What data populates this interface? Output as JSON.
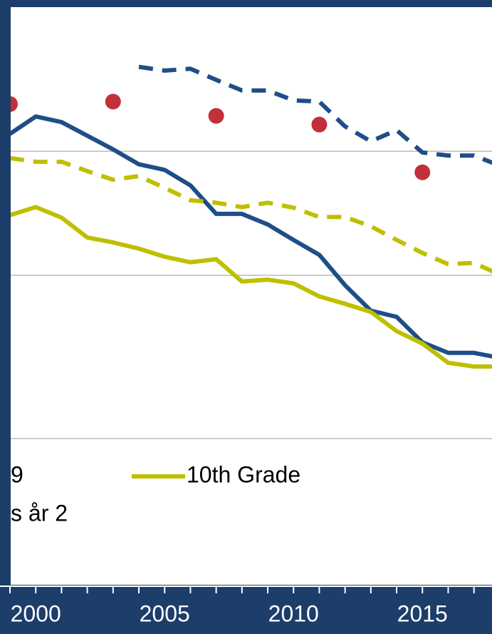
{
  "chart_data": {
    "type": "line",
    "x": [
      1999,
      2000,
      2001,
      2002,
      2003,
      2004,
      2005,
      2006,
      2007,
      2008,
      2009,
      2010,
      2011,
      2012,
      2013,
      2014,
      2015,
      2016,
      2017,
      2018
    ],
    "series": [
      {
        "name": "9",
        "color": "#1f4e87",
        "dash": false,
        "values": [
          62.8,
          65.6,
          64.7,
          62.5,
          60.3,
          57.9,
          57.0,
          54.5,
          49.9,
          49.9,
          48.2,
          45.7,
          43.3,
          38.4,
          34.3,
          33.3,
          29.2,
          27.5,
          27.5,
          26.7
        ]
      },
      {
        "name": "10th Grade",
        "color": "#bfbf00",
        "dash": false,
        "values": [
          49.7,
          51.0,
          49.3,
          46.1,
          45.3,
          44.3,
          43.0,
          42.1,
          42.6,
          39.0,
          39.3,
          38.7,
          36.6,
          35.4,
          34.1,
          31.0,
          29.0,
          25.9,
          25.3,
          25.3
        ]
      },
      {
        "name": "s år 2",
        "color": "#bfbf00",
        "dash": true,
        "values": [
          58.9,
          58.3,
          58.3,
          56.8,
          55.4,
          56.0,
          54.1,
          52.1,
          51.7,
          51.0,
          51.7,
          50.9,
          49.4,
          49.4,
          47.9,
          45.7,
          43.6,
          41.8,
          42.0,
          40.1
        ]
      },
      {
        "color": "#1f4e87",
        "dash": true,
        "values": [
          null,
          null,
          null,
          null,
          null,
          73.6,
          73.0,
          73.3,
          71.5,
          69.8,
          69.8,
          68.2,
          68.0,
          64.0,
          61.6,
          63.4,
          59.8,
          59.3,
          59.3,
          57.7
        ]
      },
      {
        "color": "#c0313a",
        "markers": true,
        "values": [
          67.6,
          null,
          null,
          null,
          68.0,
          null,
          null,
          null,
          65.7,
          null,
          null,
          null,
          64.3,
          null,
          null,
          null,
          56.6,
          null,
          null,
          null
        ]
      }
    ],
    "xlim": [
      1999,
      2017.7
    ],
    "xticks": [
      2000,
      2005,
      2010,
      2015
    ],
    "xminorticks": [
      1999,
      2000,
      2001,
      2002,
      2003,
      2004,
      2005,
      2006,
      2007,
      2008,
      2009,
      2010,
      2011,
      2012,
      2013,
      2014,
      2015,
      2016,
      2017
    ],
    "ylim": [
      0,
      83
    ],
    "yticks": [
      40,
      60
    ],
    "grid": true
  }
}
